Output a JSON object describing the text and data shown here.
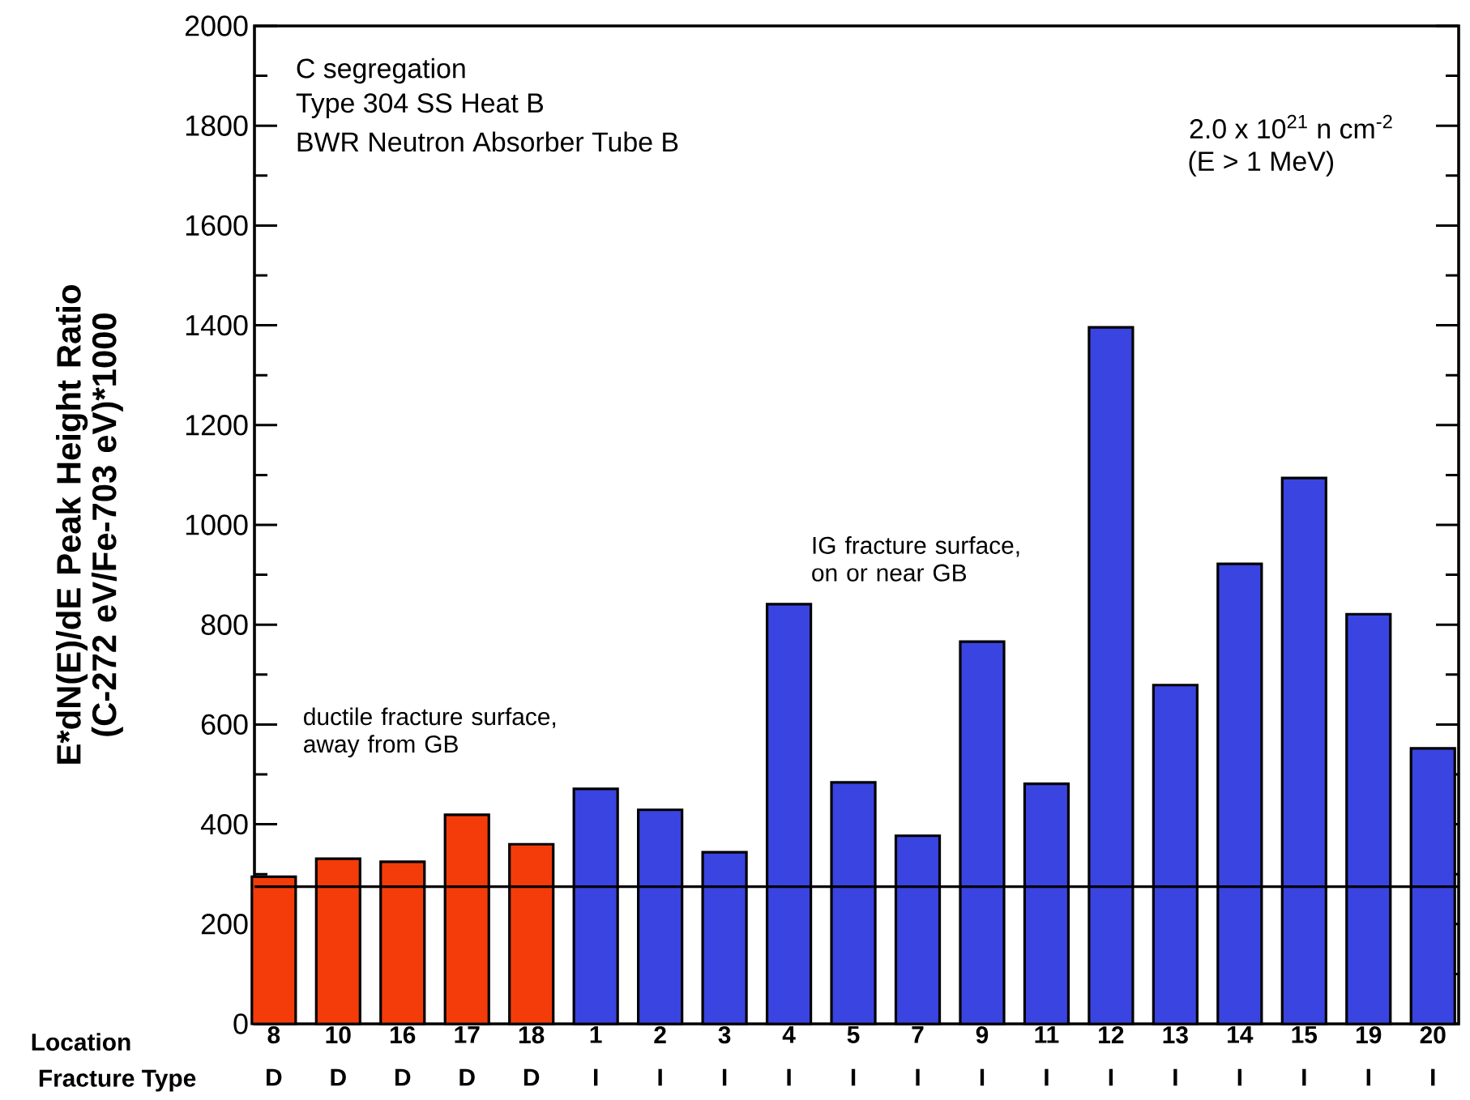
{
  "chart_data": {
    "type": "bar",
    "ylabel": "E*dN(E)/dE Peak Height Ratio (C-272 eV/Fe-703 eV)*1000",
    "categories": [
      "8",
      "10",
      "16",
      "17",
      "18",
      "1",
      "2",
      "3",
      "4",
      "5",
      "7",
      "9",
      "11",
      "12",
      "13",
      "14",
      "15",
      "19",
      "20"
    ],
    "values": [
      295,
      331,
      325,
      419,
      360,
      471,
      429,
      344,
      841,
      484,
      377,
      766,
      481,
      1396,
      679,
      922,
      1094,
      821,
      552
    ],
    "colors": [
      "#f43c0a",
      "#f43c0a",
      "#f43c0a",
      "#f43c0a",
      "#f43c0a",
      "#3a44e0",
      "#3a44e0",
      "#3a44e0",
      "#3a44e0",
      "#3a44e0",
      "#3a44e0",
      "#3a44e0",
      "#3a44e0",
      "#3a44e0",
      "#3a44e0",
      "#3a44e0",
      "#3a44e0",
      "#3a44e0",
      "#3a44e0"
    ],
    "ylim": [
      0,
      2000
    ],
    "yticks": [
      0,
      200,
      400,
      600,
      800,
      1000,
      1200,
      1400,
      1600,
      1800,
      2000
    ],
    "ref_lines": [
      {
        "axis": "y",
        "value": 275,
        "color": "#000000"
      }
    ],
    "grid": false,
    "annotations": [
      "C segregation",
      "Type 304 SS Heat B",
      "BWR Neutron Absorber Tube B",
      "2.0 x 10$^{21}$ n cm$^{-2}$",
      "(E > 1 MeV)",
      "ductile fracture surface, away from GB",
      "IG fracture surface, on or near GB",
      "Location",
      "Fracture Type",
      "D",
      "D",
      "D",
      "D",
      "D",
      "I",
      "I",
      "I",
      "I",
      "I",
      "I",
      "I",
      "I",
      "I",
      "I",
      "I",
      "I",
      "I",
      "I"
    ]
  }
}
